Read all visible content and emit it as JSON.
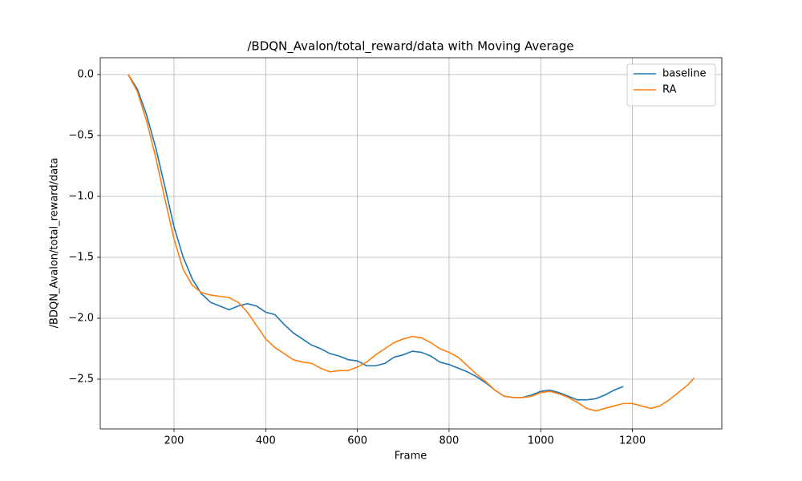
{
  "chart_data": {
    "type": "line",
    "title": "/BDQN_Avalon/total_reward/data with Moving Average",
    "xlabel": "Frame",
    "ylabel": "/BDQN_Avalon/total_reward/data",
    "xlim": [
      39,
      1395
    ],
    "ylim": [
      -2.908,
      0.138
    ],
    "xticks": [
      200,
      400,
      600,
      800,
      1000,
      1200
    ],
    "yticks": [
      {
        "value": 0.0,
        "label": "0.0"
      },
      {
        "value": -0.5,
        "label": "−0.5"
      },
      {
        "value": -1.0,
        "label": "−1.0"
      },
      {
        "value": -1.5,
        "label": "−1.5"
      },
      {
        "value": -2.0,
        "label": "−2.0"
      },
      {
        "value": -2.5,
        "label": "−2.5"
      }
    ],
    "grid": true,
    "legend": "upper right",
    "series": [
      {
        "name": "baseline",
        "color": "#1f77b4",
        "x": [
          100,
          120,
          140,
          160,
          180,
          200,
          220,
          240,
          260,
          280,
          300,
          320,
          340,
          360,
          380,
          400,
          420,
          440,
          460,
          480,
          500,
          520,
          540,
          560,
          580,
          600,
          620,
          640,
          660,
          680,
          700,
          720,
          740,
          760,
          780,
          800,
          820,
          840,
          860,
          880,
          900,
          920,
          940,
          960,
          980,
          1000,
          1020,
          1040,
          1060,
          1080,
          1100,
          1120,
          1140,
          1160,
          1180
        ],
        "values": [
          0.0,
          -0.12,
          -0.33,
          -0.6,
          -0.92,
          -1.25,
          -1.5,
          -1.68,
          -1.8,
          -1.87,
          -1.9,
          -1.93,
          -1.9,
          -1.88,
          -1.9,
          -1.95,
          -1.97,
          -2.05,
          -2.12,
          -2.17,
          -2.22,
          -2.25,
          -2.29,
          -2.31,
          -2.34,
          -2.35,
          -2.39,
          -2.39,
          -2.37,
          -2.32,
          -2.3,
          -2.27,
          -2.28,
          -2.31,
          -2.36,
          -2.38,
          -2.41,
          -2.44,
          -2.48,
          -2.53,
          -2.59,
          -2.64,
          -2.65,
          -2.65,
          -2.63,
          -2.6,
          -2.59,
          -2.61,
          -2.64,
          -2.67,
          -2.67,
          -2.66,
          -2.63,
          -2.59,
          -2.56
        ]
      },
      {
        "name": "RA",
        "color": "#ff7f0e",
        "x": [
          100,
          120,
          140,
          160,
          180,
          200,
          220,
          240,
          260,
          280,
          300,
          320,
          340,
          360,
          380,
          400,
          420,
          440,
          460,
          480,
          500,
          520,
          540,
          560,
          580,
          600,
          620,
          640,
          660,
          680,
          700,
          720,
          740,
          760,
          780,
          800,
          820,
          840,
          860,
          880,
          900,
          920,
          940,
          960,
          980,
          1000,
          1020,
          1040,
          1060,
          1080,
          1100,
          1120,
          1140,
          1160,
          1180,
          1200,
          1220,
          1240,
          1260,
          1280,
          1300,
          1320,
          1335
        ],
        "values": [
          0.0,
          -0.14,
          -0.38,
          -0.68,
          -1.02,
          -1.35,
          -1.6,
          -1.73,
          -1.79,
          -1.81,
          -1.82,
          -1.83,
          -1.87,
          -1.95,
          -2.06,
          -2.17,
          -2.24,
          -2.29,
          -2.34,
          -2.36,
          -2.37,
          -2.41,
          -2.44,
          -2.43,
          -2.43,
          -2.4,
          -2.36,
          -2.3,
          -2.25,
          -2.2,
          -2.17,
          -2.15,
          -2.16,
          -2.2,
          -2.25,
          -2.28,
          -2.32,
          -2.39,
          -2.46,
          -2.52,
          -2.59,
          -2.64,
          -2.65,
          -2.65,
          -2.64,
          -2.61,
          -2.6,
          -2.62,
          -2.65,
          -2.69,
          -2.74,
          -2.76,
          -2.74,
          -2.72,
          -2.7,
          -2.7,
          -2.72,
          -2.74,
          -2.72,
          -2.67,
          -2.61,
          -2.55,
          -2.49
        ]
      }
    ]
  }
}
